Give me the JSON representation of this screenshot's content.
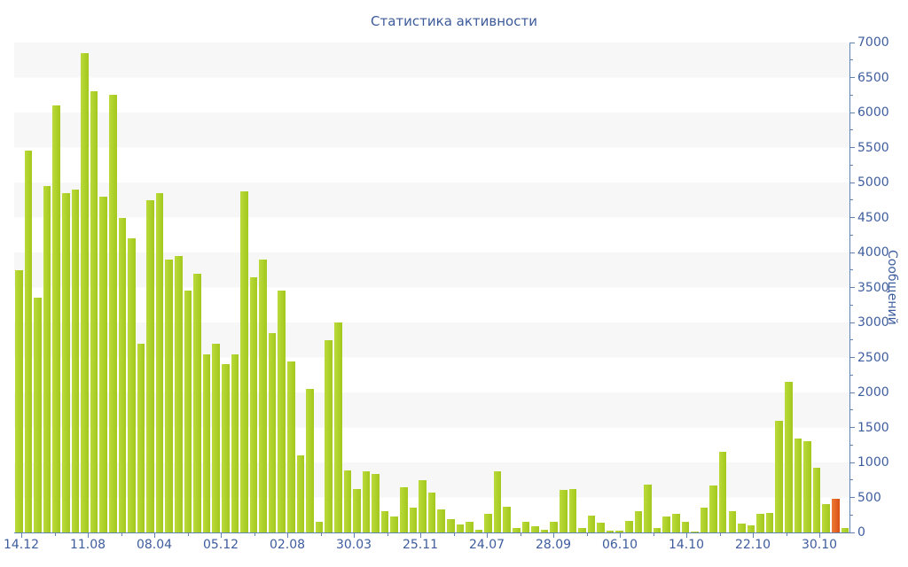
{
  "chart_data": {
    "type": "bar",
    "title": "Статистика активности",
    "ylabel": "Сообщений",
    "xlabel": "",
    "ylim": [
      0,
      7000
    ],
    "y_major_step": 500,
    "y_minor_step": 250,
    "grid": "striped-bands-every-500",
    "legend": "none",
    "y_axis_side": "right",
    "y_tick_labels": [
      "0",
      "500",
      "1000",
      "1500",
      "2000",
      "2500",
      "3000",
      "3500",
      "4000",
      "4500",
      "5000",
      "5500",
      "6000",
      "6500",
      "7000"
    ],
    "x_tick_labels": [
      "14.12",
      "11.08",
      "08.04",
      "05.12",
      "02.08",
      "30.03",
      "25.11",
      "24.07",
      "28.09",
      "06.10",
      "14.10",
      "22.10",
      "30.10"
    ],
    "bar_color": "#a8cc22",
    "highlight_color": "#e2591e",
    "highlight_index": 87,
    "values": [
      3750,
      5450,
      3350,
      4950,
      6100,
      4850,
      4900,
      6850,
      6300,
      4800,
      6250,
      4500,
      4200,
      2700,
      4750,
      4850,
      3900,
      3950,
      3450,
      3700,
      2550,
      2700,
      2400,
      2550,
      4880,
      3650,
      3900,
      2850,
      3450,
      2450,
      1100,
      2050,
      150,
      2750,
      3000,
      890,
      620,
      880,
      830,
      310,
      225,
      650,
      360,
      750,
      570,
      330,
      190,
      120,
      150,
      40,
      270,
      880,
      370,
      65,
      155,
      85,
      40,
      155,
      605,
      615,
      65,
      240,
      140,
      30,
      20,
      160,
      300,
      690,
      70,
      225,
      270,
      150,
      15,
      350,
      670,
      1150,
      310,
      130,
      105,
      265,
      275,
      1600,
      2150,
      1340,
      1310,
      930,
      400,
      480,
      60
    ]
  }
}
